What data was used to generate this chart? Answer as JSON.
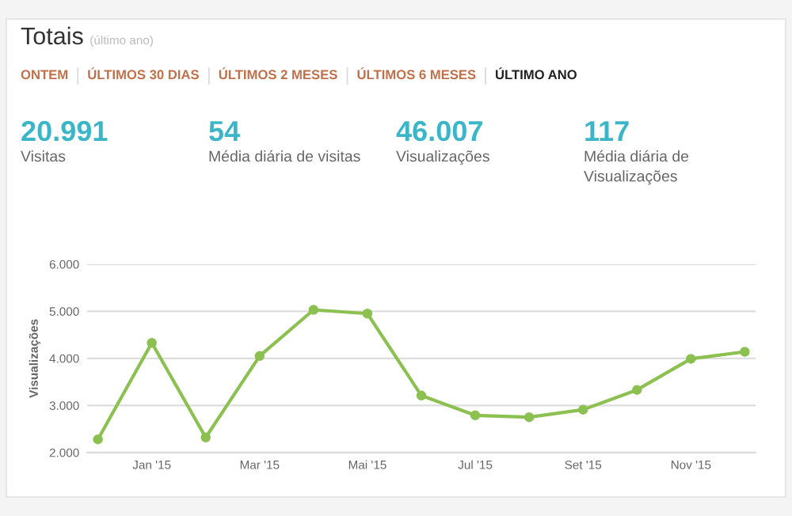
{
  "chart_data": {
    "type": "line",
    "title": "Totais",
    "subtitle": "(último ano)",
    "ylabel": "Visualizações",
    "annotations": [
      "ONTEM",
      "ÚLTIMOS 30 DIAS",
      "ÚLTIMOS 2 MESES",
      "ÚLTIMOS 6 MESES",
      "ÚLTIMO ANO",
      "20.991",
      "Visitas",
      "54",
      "Média diária de visitas",
      "46.007",
      "Visualizações",
      "117",
      "Média diária de\nVisualizações"
    ],
    "categories": [
      null,
      "Jan '15",
      null,
      "Mar '15",
      null,
      "Mai '15",
      null,
      "Jul '15",
      null,
      "Set '15",
      null,
      "Nov '15",
      null
    ],
    "series": [
      {
        "color": "#8cc152",
        "values": [
          2280,
          4330,
          2320,
          4050,
          5030,
          4950,
          3210,
          2790,
          2750,
          2910,
          3330,
          3990,
          4140
        ]
      }
    ],
    "ylim": [
      2000,
      6000
    ],
    "yticks": [
      {
        "value": 2000,
        "label": "2.000"
      },
      {
        "value": 3000,
        "label": "3.000"
      },
      {
        "value": 4000,
        "label": "4.000"
      },
      {
        "value": 5000,
        "label": "5.000"
      },
      {
        "value": 6000,
        "label": "6.000"
      }
    ],
    "grid": "y",
    "marker": "circle",
    "line_style": "solid"
  }
}
